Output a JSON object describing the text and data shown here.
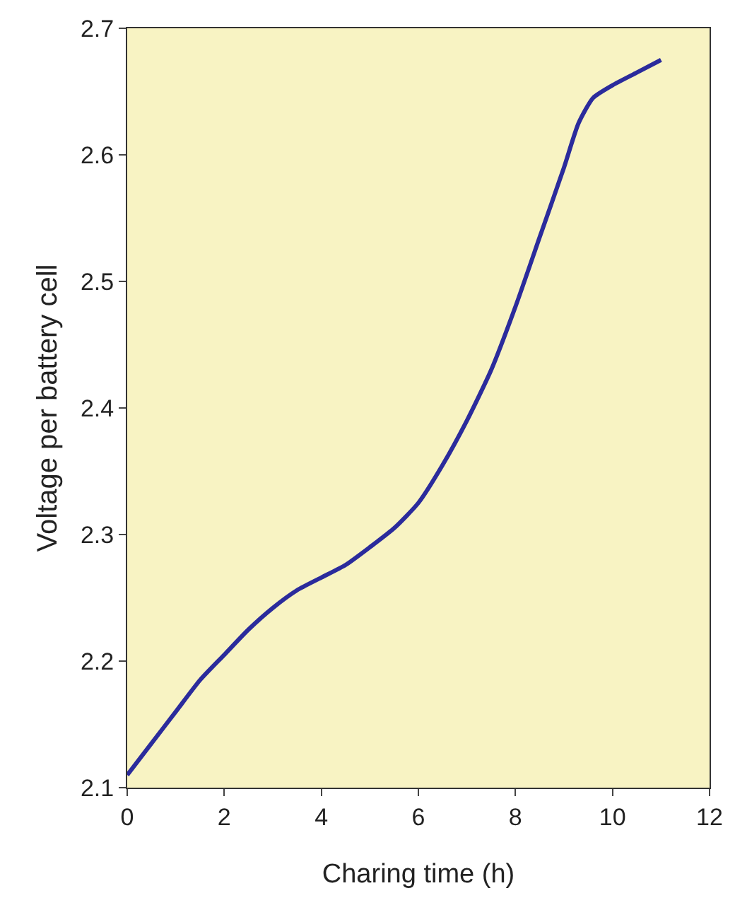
{
  "chart_data": {
    "type": "line",
    "xlabel": "Charing time (h)",
    "ylabel": "Voltage per battery cell",
    "x": [
      0,
      0.5,
      1,
      1.5,
      2,
      2.5,
      3,
      3.5,
      4,
      4.5,
      5,
      5.5,
      6,
      6.5,
      7,
      7.5,
      8,
      8.5,
      9,
      9.3,
      9.6,
      10,
      10.5,
      11
    ],
    "series": [
      {
        "color": "#2b2b9c",
        "values": [
          2.11,
          2.135,
          2.16,
          2.185,
          2.205,
          2.225,
          2.242,
          2.256,
          2.266,
          2.276,
          2.29,
          2.305,
          2.325,
          2.355,
          2.39,
          2.43,
          2.48,
          2.535,
          2.59,
          2.625,
          2.645,
          2.655,
          2.665,
          2.675
        ]
      }
    ],
    "xlim": [
      0,
      12
    ],
    "xticks": [
      0,
      2,
      4,
      6,
      8,
      10,
      12
    ],
    "ylim": [
      2.1,
      2.7
    ],
    "yticks": [
      2.1,
      2.2,
      2.3,
      2.4,
      2.5,
      2.6,
      2.7
    ],
    "grid": false,
    "marker": "none",
    "line_style": "solid"
  }
}
